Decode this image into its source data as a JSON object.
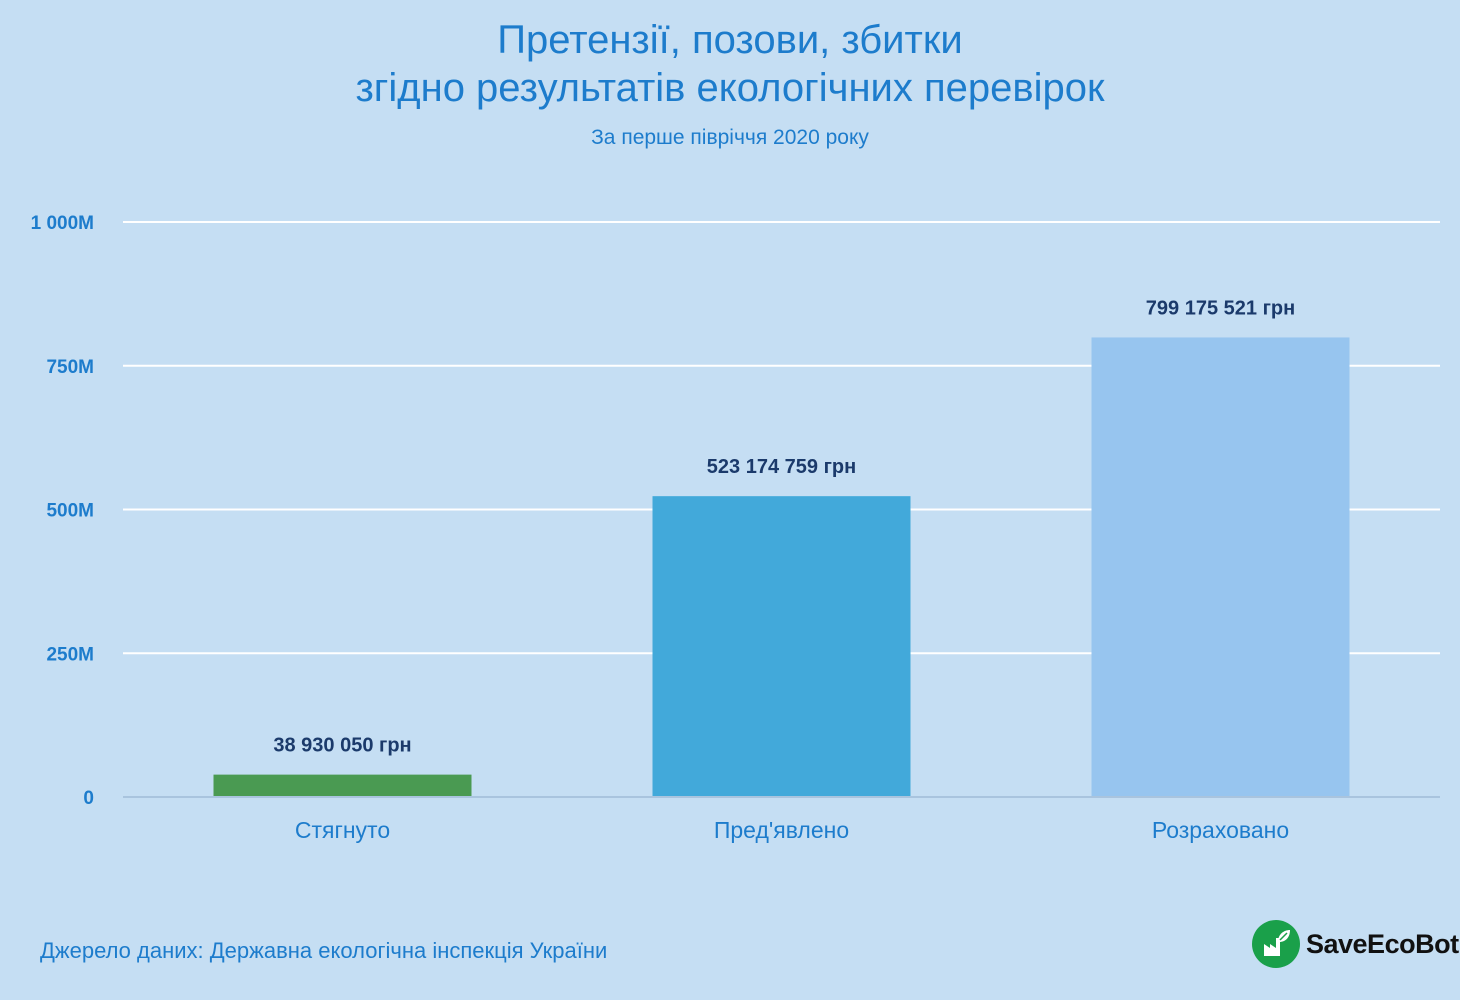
{
  "title_lines": [
    "Претензії, позови, збитки",
    "згідно результатів екологічних перевірок"
  ],
  "subtitle": "За перше півріччя 2020 року",
  "source": "Джерело даних: Державна екологічна інспекція України",
  "logo": {
    "text": "SaveEcoBot",
    "icon": "leaf-factory-icon",
    "color": "#1aa04a"
  },
  "chart_data": {
    "type": "bar",
    "categories": [
      "Стягнуто",
      "Пред'явлено",
      "Розраховано"
    ],
    "values": [
      38930050,
      523174759,
      799175521
    ],
    "data_labels": [
      "38 930 050 грн",
      "523 174 759 грн",
      "799 175 521 грн"
    ],
    "colors": [
      "#4a9a52",
      "#42a9da",
      "#97c5ef"
    ],
    "ylim": [
      0,
      1000000000
    ],
    "yticks": [
      0,
      250000000,
      500000000,
      750000000,
      1000000000
    ],
    "ytick_labels": [
      "0",
      "250M",
      "500M",
      "750M",
      "1 000M"
    ],
    "grid": true,
    "xlabel": "",
    "ylabel": ""
  }
}
